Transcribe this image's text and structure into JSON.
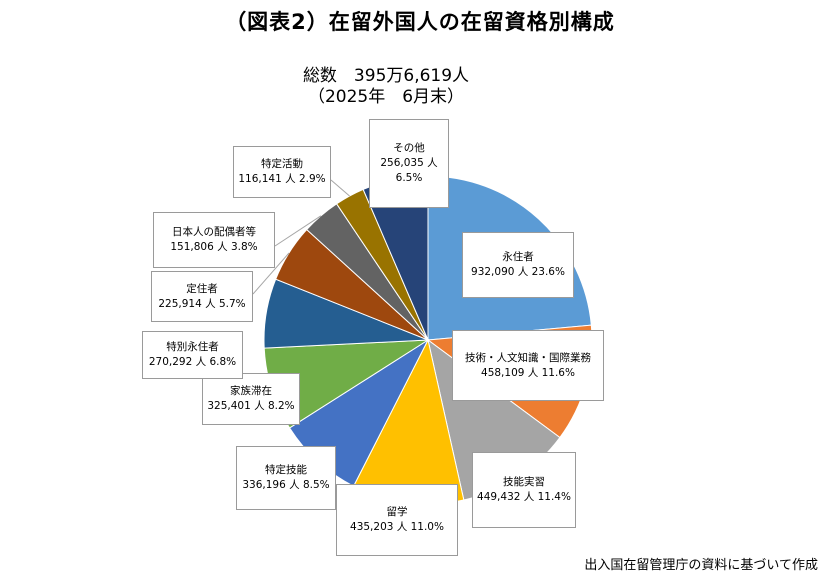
{
  "title": "（図表2）在留外国人の在留資格別構成",
  "total_line1": "総数　395万6,619人",
  "total_line2": "（2025年　6月末）",
  "source": "出入国在留管理庁の資料に基づいて作成",
  "chart_data": {
    "type": "pie",
    "title": "（図表2）在留外国人の在留資格別構成",
    "slices": [
      {
        "name": "永住者",
        "value": 932090,
        "value_label": "932,090 人 23.6%",
        "percent": 23.6,
        "color": "#5B9BD5"
      },
      {
        "name": "技術・人文知識・国際業務",
        "value": 458109,
        "value_label": "458,109 人 11.6%",
        "percent": 11.6,
        "color": "#ED7D31"
      },
      {
        "name": "技能実習",
        "value": 449432,
        "value_label": "449,432 人 11.4%",
        "percent": 11.4,
        "color": "#A5A5A5"
      },
      {
        "name": "留学",
        "value": 435203,
        "value_label": "435,203 人 11.0%",
        "percent": 11.0,
        "color": "#FFC000"
      },
      {
        "name": "特定技能",
        "value": 336196,
        "value_label": "336,196 人 8.5%",
        "percent": 8.5,
        "color": "#4472C4"
      },
      {
        "name": "家族滞在",
        "value": 325401,
        "value_label": "325,401 人 8.2%",
        "percent": 8.2,
        "color": "#70AD47"
      },
      {
        "name": "特別永住者",
        "value": 270292,
        "value_label": "270,292 人 6.8%",
        "percent": 6.8,
        "color": "#255E91"
      },
      {
        "name": "定住者",
        "value": 225914,
        "value_label": "225,914 人 5.7%",
        "percent": 5.7,
        "color": "#9E480E"
      },
      {
        "name": "日本人の配偶者等",
        "value": 151806,
        "value_label": "151,806 人 3.8%",
        "percent": 3.8,
        "color": "#636363"
      },
      {
        "name": "特定活動",
        "value": 116141,
        "value_label": "116,141 人 2.9%",
        "percent": 2.9,
        "color": "#997300"
      },
      {
        "name": "その他",
        "value": 256035,
        "value_label": "256,035 人",
        "value_label2": "6.5%",
        "percent": 6.5,
        "color": "#264478"
      }
    ]
  }
}
